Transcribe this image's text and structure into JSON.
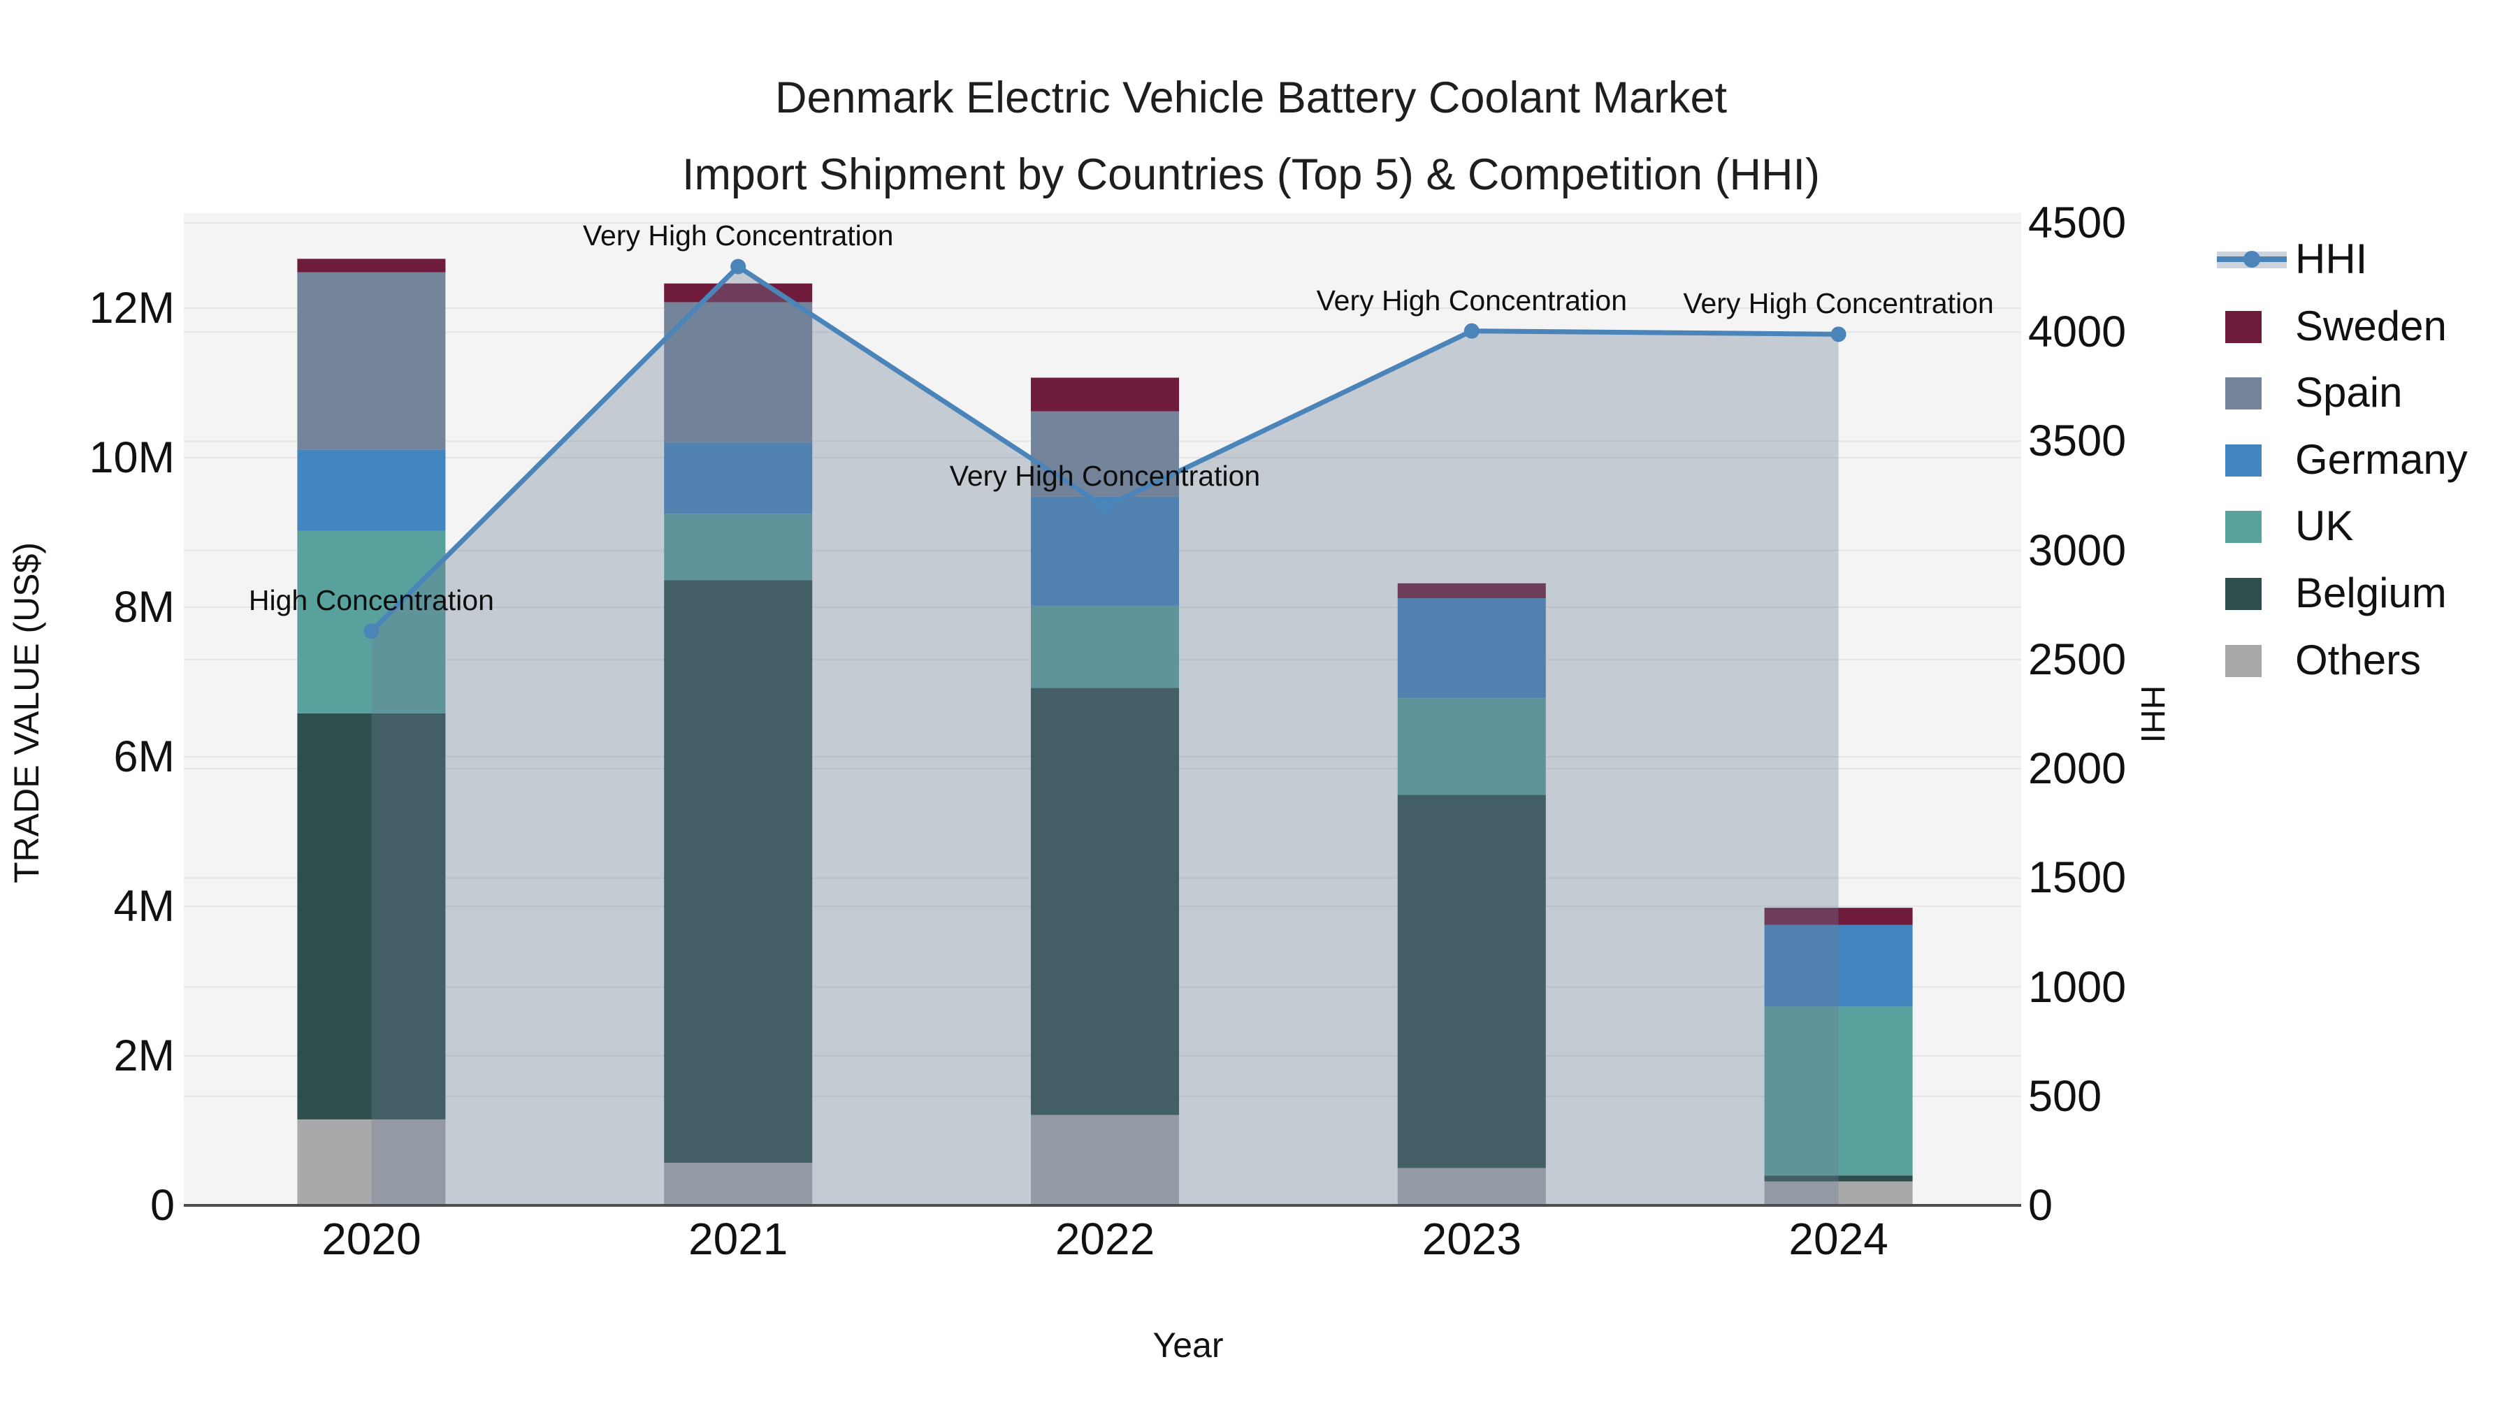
{
  "title": {
    "line1": "Denmark Electric Vehicle Battery Coolant Market",
    "line2": "Import Shipment by Countries (Top 5) & Competition (HHI)"
  },
  "axes": {
    "x": {
      "title": "Year",
      "categories": [
        "2020",
        "2021",
        "2022",
        "2023",
        "2024"
      ]
    },
    "y_left": {
      "title": "TRADE VALUE (US$)",
      "tick_labels": [
        "0",
        "2M",
        "4M",
        "6M",
        "8M",
        "10M",
        "12M"
      ],
      "tick_values_musd": [
        0,
        2,
        4,
        6,
        8,
        10,
        12
      ]
    },
    "y_right": {
      "title": "HHI",
      "tick_values": [
        0,
        500,
        1000,
        1500,
        2000,
        2500,
        3000,
        3500,
        4000,
        4500
      ],
      "range": [
        0,
        4500
      ]
    }
  },
  "colors": {
    "sweden": "#6e1b3c",
    "spain": "#74859b",
    "germany": "#4385be",
    "uk": "#58a19d",
    "belgium": "#2e4e4d",
    "others": "#a9a9ab",
    "hhi_line": "#4a84b8",
    "hhi_fill": "rgba(110,126,150,0.35)",
    "legend_band": "#ccd3dc",
    "plot_bg": "#f4f4f5",
    "grid": "#e4e4e6",
    "axis_line": "#4d4d4d"
  },
  "legend": [
    {
      "label": "HHI",
      "kind": "line"
    },
    {
      "label": "Sweden",
      "kind": "swatch",
      "color_key": "sweden"
    },
    {
      "label": "Spain",
      "kind": "swatch",
      "color_key": "spain"
    },
    {
      "label": "Germany",
      "kind": "swatch",
      "color_key": "germany"
    },
    {
      "label": "UK",
      "kind": "swatch",
      "color_key": "uk"
    },
    {
      "label": "Belgium",
      "kind": "swatch",
      "color_key": "belgium"
    },
    {
      "label": "Others",
      "kind": "swatch",
      "color_key": "others"
    }
  ],
  "chart_data": {
    "type": "combo: stacked bar (left axis) + line with area fill (right axis)",
    "categories": [
      "2020",
      "2021",
      "2022",
      "2023",
      "2024"
    ],
    "bar_unit": "million US$",
    "series": [
      {
        "name": "Others",
        "type": "bar",
        "color_key": "others",
        "values_musd": [
          1.15,
          0.57,
          1.21,
          0.5,
          0.32
        ]
      },
      {
        "name": "Belgium",
        "type": "bar",
        "color_key": "belgium",
        "values_musd": [
          5.43,
          7.79,
          5.71,
          4.99,
          0.08
        ]
      },
      {
        "name": "UK",
        "type": "bar",
        "color_key": "uk",
        "values_musd": [
          2.44,
          0.89,
          1.1,
          1.3,
          2.26
        ]
      },
      {
        "name": "Germany",
        "type": "bar",
        "color_key": "germany",
        "values_musd": [
          1.09,
          0.95,
          1.46,
          1.33,
          1.09
        ]
      },
      {
        "name": "Spain",
        "type": "bar",
        "color_key": "spain",
        "values_musd": [
          2.37,
          1.88,
          1.14,
          0.0,
          0.0
        ]
      },
      {
        "name": "Sweden",
        "type": "bar",
        "color_key": "sweden",
        "values_musd": [
          0.18,
          0.25,
          0.45,
          0.2,
          0.23
        ]
      }
    ],
    "bar_totals_musd": [
      12.66,
      12.33,
      11.07,
      8.32,
      3.98
    ],
    "hhi": {
      "name": "HHI",
      "type": "line",
      "color_key": "hhi_line",
      "values": [
        2630,
        4300,
        3200,
        4005,
        3990
      ]
    },
    "annotations": [
      {
        "category": "2020",
        "text": "High Concentration"
      },
      {
        "category": "2021",
        "text": "Very High Concentration"
      },
      {
        "category": "2022",
        "text": "Very High Concentration"
      },
      {
        "category": "2023",
        "text": "Very High Concentration"
      },
      {
        "category": "2024",
        "text": "Very High Concentration"
      }
    ],
    "legend_position": "right",
    "grid": true
  }
}
